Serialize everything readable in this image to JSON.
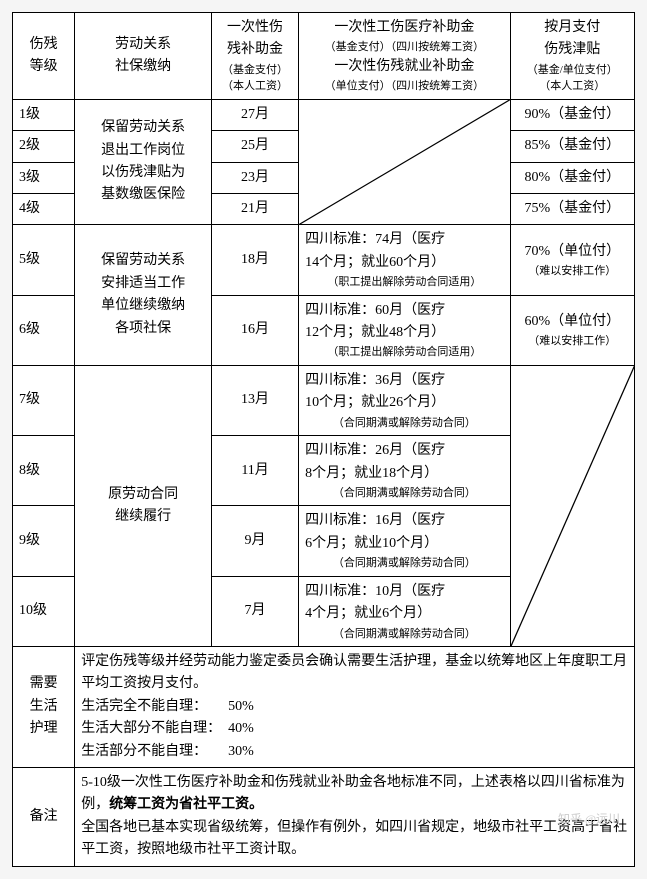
{
  "col_widths": [
    "10%",
    "22%",
    "14%",
    "34%",
    "20%"
  ],
  "header": {
    "level": {
      "main": "伤残\n等级",
      "sub": ""
    },
    "relation": {
      "main": "劳动关系\n社保缴纳",
      "sub": ""
    },
    "lump": {
      "main": "一次性伤\n残补助金",
      "sub": "（基金支付）\n（本人工资）"
    },
    "med_emp": {
      "main_a": "一次性工伤医疗补助金",
      "sub_a": "（基金支付）（四川按统筹工资）",
      "main_b": "一次性伤残就业补助金",
      "sub_b": "（单位支付）（四川按统筹工资）"
    },
    "monthly": {
      "main": "按月支付\n伤残津贴",
      "sub": "（基金/单位支付）\n（本人工资）"
    }
  },
  "group_1_4": {
    "relation": "保留劳动关系\n退出工作岗位\n以伤残津贴为\n基数缴医保险",
    "rows": [
      {
        "level": "1级",
        "lump": "27月",
        "monthly": "90%（基金付）"
      },
      {
        "level": "2级",
        "lump": "25月",
        "monthly": "85%（基金付）"
      },
      {
        "level": "3级",
        "lump": "23月",
        "monthly": "80%（基金付）"
      },
      {
        "level": "4级",
        "lump": "21月",
        "monthly": "75%（基金付）"
      }
    ]
  },
  "group_5_6": {
    "relation": "保留劳动关系\n安排适当工作\n单位继续缴纳\n各项社保",
    "rows": [
      {
        "level": "5级",
        "lump": "18月",
        "med_main": "四川标准：74月（医疗\n14个月；就业60个月）",
        "med_sub": "（职工提出解除劳动合同适用）",
        "monthly_main": "70%（单位付）",
        "monthly_sub": "（难以安排工作）"
      },
      {
        "level": "6级",
        "lump": "16月",
        "med_main": "四川标准：60月（医疗\n12个月；就业48个月）",
        "med_sub": "（职工提出解除劳动合同适用）",
        "monthly_main": "60%（单位付）",
        "monthly_sub": "（难以安排工作）"
      }
    ]
  },
  "group_7_10": {
    "relation": "原劳动合同\n继续履行",
    "rows": [
      {
        "level": "7级",
        "lump": "13月",
        "med_main": "四川标准：36月（医疗\n10个月；就业26个月）",
        "med_sub": "（合同期满或解除劳动合同）"
      },
      {
        "level": "8级",
        "lump": "11月",
        "med_main": "四川标准：26月（医疗\n8个月；就业18个月）",
        "med_sub": "（合同期满或解除劳动合同）"
      },
      {
        "level": "9级",
        "lump": "9月",
        "med_main": "四川标准：16月（医疗\n6个月；就业10个月）",
        "med_sub": "（合同期满或解除劳动合同）"
      },
      {
        "level": "10级",
        "lump": "7月",
        "med_main": "四川标准：10月（医疗\n4个月；就业6个月）",
        "med_sub": "（合同期满或解除劳动合同）"
      }
    ]
  },
  "care": {
    "label": "需要\n生活\n护理",
    "intro": "评定伤残等级并经劳动能力鉴定委员会确认需要生活护理，基金以统筹地区上年度职工月平均工资按月支付。",
    "l1": "生活完全不能自理：　　50%",
    "l2": "生活大部分不能自理：　40%",
    "l3": "生活部分不能自理：　　30%"
  },
  "remark": {
    "label": "备注",
    "p1a": "5-10级一次性工伤医疗补助金和伤残就业补助金各地标准不同，上述表格以四川省标准为例，",
    "p1b": "统筹工资为省社平工资。",
    "p2": "全国各地已基本实现省级统筹，但操作有例外，如四川省规定，地级市社平工资高于省社平工资，按照地级市社平工资计取。"
  },
  "watermark": "知乎 @远川"
}
